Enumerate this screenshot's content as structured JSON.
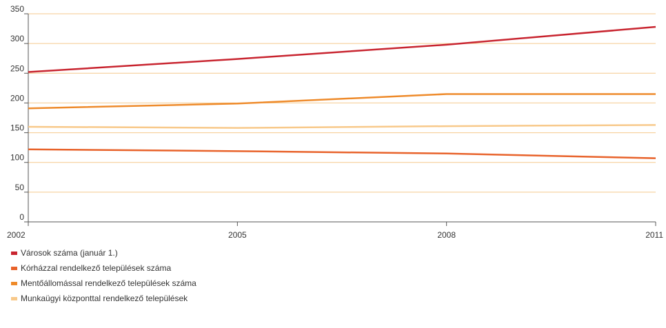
{
  "chart_data": {
    "type": "line",
    "x": [
      "2002",
      "2005",
      "2008",
      "2011"
    ],
    "ylim": [
      0,
      350
    ],
    "yticks": [
      "0",
      "50",
      "100",
      "150",
      "200",
      "250",
      "300",
      "350"
    ],
    "grid": true,
    "legend_position": "bottom-left",
    "gridline_color": "#f5c98c",
    "series": [
      {
        "name": "Városok száma (január 1.)",
        "values": [
          252,
          274,
          298,
          328
        ],
        "color": "#c8242f"
      },
      {
        "name": "Kórházzal rendelkező települések száma",
        "values": [
          122,
          119,
          115,
          107
        ],
        "color": "#e8622a"
      },
      {
        "name": "Mentőállomással rendelkező települések száma",
        "values": [
          191,
          199,
          215,
          215
        ],
        "color": "#ee8a2a"
      },
      {
        "name": "Munkaügyi központtal rendelkező települések",
        "values": [
          160,
          158,
          161,
          163
        ],
        "color": "#f8c98a"
      }
    ]
  }
}
